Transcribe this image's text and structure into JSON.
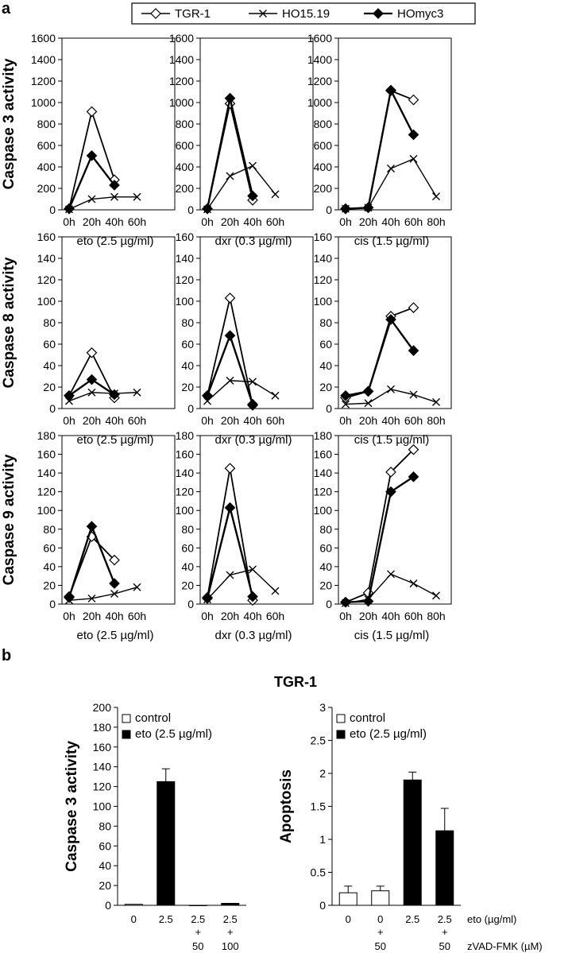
{
  "panel_labels": {
    "a": "a",
    "b": "b"
  },
  "legend": [
    {
      "name": "TGR-1",
      "marker": "diamond-open"
    },
    {
      "name": "HO15.19",
      "marker": "cross"
    },
    {
      "name": "HOmyc3",
      "marker": "diamond-filled"
    }
  ],
  "b_title": "TGR-1",
  "colors": {
    "line": "#000000",
    "fill_filled": "#000000",
    "fill_open": "#ffffff",
    "background": "#ffffff"
  },
  "chart_data": [
    {
      "type": "line",
      "row_label": "Caspase 3 activity",
      "xlabel": "eto (2.5 µg/ml)",
      "categories": [
        "0h",
        "20h",
        "40h",
        "60h"
      ],
      "ylim": [
        0,
        1600
      ],
      "yticks": [
        0,
        200,
        400,
        600,
        800,
        1000,
        1200,
        1400,
        1600
      ],
      "series": [
        {
          "name": "TGR-1",
          "values": [
            10,
            915,
            280,
            null
          ]
        },
        {
          "name": "HO15.19",
          "values": [
            5,
            100,
            120,
            120
          ]
        },
        {
          "name": "HOmyc3",
          "values": [
            10,
            505,
            230,
            null
          ]
        }
      ]
    },
    {
      "type": "line",
      "xlabel": "dxr (0.3 µg/ml)",
      "categories": [
        "0h",
        "20h",
        "40h",
        "60h"
      ],
      "ylim": [
        0,
        1600
      ],
      "yticks": [
        0,
        200,
        400,
        600,
        800,
        1000,
        1200,
        1400,
        1600
      ],
      "series": [
        {
          "name": "TGR-1",
          "values": [
            10,
            990,
            90,
            null
          ]
        },
        {
          "name": "HO15.19",
          "values": [
            5,
            315,
            410,
            145
          ]
        },
        {
          "name": "HOmyc3",
          "values": [
            10,
            1040,
            130,
            null
          ]
        }
      ]
    },
    {
      "type": "line",
      "xlabel": "cis (1.5 µg/ml)",
      "categories": [
        "0h",
        "20h",
        "40h",
        "60h",
        "80h"
      ],
      "ylim": [
        0,
        1600
      ],
      "yticks": [
        0,
        200,
        400,
        600,
        800,
        1000,
        1200,
        1400,
        1600
      ],
      "series": [
        {
          "name": "TGR-1",
          "values": [
            10,
            20,
            1110,
            1025,
            null
          ]
        },
        {
          "name": "HO15.19",
          "values": [
            10,
            20,
            385,
            475,
            125
          ]
        },
        {
          "name": "HOmyc3",
          "values": [
            10,
            20,
            1115,
            700,
            null
          ]
        }
      ]
    },
    {
      "type": "line",
      "row_label": "Caspase 8 activity",
      "xlabel": "eto (2.5 µg/ml)",
      "categories": [
        "0h",
        "20h",
        "40h",
        "60h"
      ],
      "ylim": [
        0,
        160
      ],
      "yticks": [
        0,
        20,
        40,
        60,
        80,
        100,
        120,
        140,
        160
      ],
      "series": [
        {
          "name": "TGR-1",
          "values": [
            12,
            52,
            10,
            null
          ]
        },
        {
          "name": "HO15.19",
          "values": [
            7,
            15,
            14,
            15
          ]
        },
        {
          "name": "HOmyc3",
          "values": [
            12,
            27,
            13,
            null
          ]
        }
      ]
    },
    {
      "type": "line",
      "xlabel": "dxr (0.3 µg/ml)",
      "categories": [
        "0h",
        "20h",
        "40h",
        "60h"
      ],
      "ylim": [
        0,
        160
      ],
      "yticks": [
        0,
        20,
        40,
        60,
        80,
        100,
        120,
        140,
        160
      ],
      "series": [
        {
          "name": "TGR-1",
          "values": [
            12,
            103,
            3,
            null
          ]
        },
        {
          "name": "HO15.19",
          "values": [
            7,
            26,
            25,
            12
          ]
        },
        {
          "name": "HOmyc3",
          "values": [
            12,
            68,
            4,
            null
          ]
        }
      ]
    },
    {
      "type": "line",
      "xlabel": "cis (1.5 µg/ml)",
      "categories": [
        "0h",
        "20h",
        "40h",
        "60h",
        "80h"
      ],
      "ylim": [
        0,
        160
      ],
      "yticks": [
        0,
        20,
        40,
        60,
        80,
        100,
        120,
        140,
        160
      ],
      "series": [
        {
          "name": "TGR-1",
          "values": [
            10,
            16,
            86,
            94,
            null
          ]
        },
        {
          "name": "HO15.19",
          "values": [
            4,
            5,
            18,
            13,
            6
          ]
        },
        {
          "name": "HOmyc3",
          "values": [
            12,
            16,
            83,
            54,
            null
          ]
        }
      ]
    },
    {
      "type": "line",
      "row_label": "Caspase 9 activity",
      "xlabel": "eto (2.5 µg/ml)",
      "categories": [
        "0h",
        "20h",
        "40h",
        "60h"
      ],
      "ylim": [
        0,
        180
      ],
      "yticks": [
        0,
        20,
        40,
        60,
        80,
        100,
        120,
        140,
        160,
        180
      ],
      "series": [
        {
          "name": "TGR-1",
          "values": [
            8,
            72,
            47,
            null
          ]
        },
        {
          "name": "HO15.19",
          "values": [
            4,
            6,
            11,
            18
          ]
        },
        {
          "name": "HOmyc3",
          "values": [
            7,
            83,
            22,
            null
          ]
        }
      ]
    },
    {
      "type": "line",
      "xlabel": "dxr (0.3 µg/ml)",
      "categories": [
        "0h",
        "20h",
        "40h",
        "60h"
      ],
      "ylim": [
        0,
        180
      ],
      "yticks": [
        0,
        20,
        40,
        60,
        80,
        100,
        120,
        140,
        160,
        180
      ],
      "series": [
        {
          "name": "TGR-1",
          "values": [
            7,
            145,
            4,
            null
          ]
        },
        {
          "name": "HO15.19",
          "values": [
            5,
            31,
            37,
            14
          ]
        },
        {
          "name": "HOmyc3",
          "values": [
            6,
            103,
            8,
            null
          ]
        }
      ]
    },
    {
      "type": "line",
      "xlabel": "cis (1.5 µg/ml)",
      "categories": [
        "0h",
        "20h",
        "40h",
        "60h",
        "80h"
      ],
      "ylim": [
        0,
        180
      ],
      "yticks": [
        0,
        20,
        40,
        60,
        80,
        100,
        120,
        140,
        160,
        180
      ],
      "series": [
        {
          "name": "TGR-1",
          "values": [
            2,
            12,
            141,
            165,
            null
          ]
        },
        {
          "name": "HO15.19",
          "values": [
            1,
            5,
            32,
            22,
            9
          ]
        },
        {
          "name": "HOmyc3",
          "values": [
            2,
            3,
            120,
            136,
            null
          ]
        }
      ]
    },
    {
      "type": "bar",
      "title": "TGR-1",
      "ylabel": "Caspase 3 activity",
      "ylim": [
        0,
        200
      ],
      "yticks": [
        0,
        20,
        40,
        60,
        80,
        100,
        120,
        140,
        160,
        180,
        200
      ],
      "categories": [
        {
          "eto": "0",
          "zvad": ""
        },
        {
          "eto": "2.5",
          "zvad": ""
        },
        {
          "eto": "2.5",
          "zvad": "50"
        },
        {
          "eto": "2.5",
          "zvad": "100"
        }
      ],
      "values": [
        1,
        125,
        0,
        2
      ],
      "errors": [
        0,
        13,
        0,
        0
      ],
      "fill": [
        "open",
        "filled",
        "filled",
        "filled"
      ],
      "legend": [
        "control",
        "eto (2.5 µg/ml)"
      ]
    },
    {
      "type": "bar",
      "ylabel": "Apoptosis",
      "ylim": [
        0,
        3
      ],
      "yticks": [
        "0",
        "0.5",
        "1",
        "1.5",
        "2",
        "2.5",
        "3"
      ],
      "categories": [
        {
          "eto": "0",
          "zvad": ""
        },
        {
          "eto": "0",
          "zvad": "50"
        },
        {
          "eto": "2.5",
          "zvad": ""
        },
        {
          "eto": "2.5",
          "zvad": "50"
        }
      ],
      "values": [
        0.19,
        0.22,
        1.9,
        1.13
      ],
      "errors": [
        0.1,
        0.07,
        0.12,
        0.34
      ],
      "fill": [
        "open",
        "open",
        "filled",
        "filled"
      ],
      "legend": [
        "control",
        "eto (2.5 µg/ml)"
      ],
      "row_labels": [
        "eto (µg/ml)",
        "zVAD-FMK (µM)"
      ]
    }
  ]
}
